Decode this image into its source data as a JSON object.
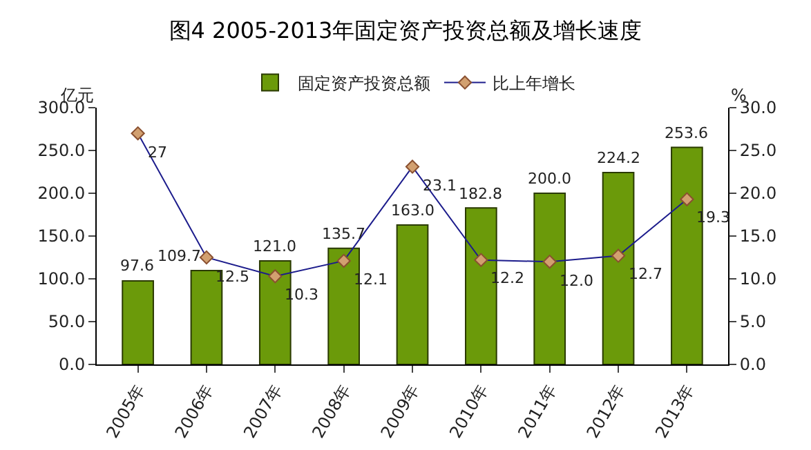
{
  "chart_data": {
    "type": "bar",
    "title": "图4 2005-2013年固定资产投资总额及增长速度",
    "ylabel": "亿元",
    "y2label": "%",
    "categories": [
      "2005年",
      "2006年",
      "2007年",
      "2008年",
      "2009年",
      "2010年",
      "2011年",
      "2012年",
      "2013年"
    ],
    "series": [
      {
        "name": "固定资产投资总额",
        "color": "#6b9a0a",
        "values": [
          97.6,
          109.7,
          121.0,
          135.7,
          163.0,
          182.8,
          200.0,
          224.2,
          253.6
        ],
        "value_labels": [
          "97.6",
          "109.7",
          "121.0",
          "135.7",
          "163.0",
          "182.8",
          "200.0",
          "224.2",
          "253.6"
        ]
      },
      {
        "name": "比上年增长",
        "type": "line",
        "axis": "y2",
        "color": "#1c1c8c",
        "marker": "diamond",
        "values": [
          27,
          12.5,
          10.3,
          12.1,
          23.1,
          12.2,
          12.0,
          12.7,
          19.3
        ],
        "value_labels": [
          "27",
          "12.5",
          "10.3",
          "12.1",
          "23.1",
          "12.2",
          "12.0",
          "12.7",
          "19.3"
        ]
      }
    ],
    "ylim": [
      0,
      300
    ],
    "yticks": [
      {
        "value": 0,
        "label": "0.0"
      },
      {
        "value": 50,
        "label": "50.0"
      },
      {
        "value": 100,
        "label": "100.0"
      },
      {
        "value": 150,
        "label": "150.0"
      },
      {
        "value": 200,
        "label": "200.0"
      },
      {
        "value": 250,
        "label": "250.0"
      },
      {
        "value": 300,
        "label": "300.0"
      }
    ],
    "y2lim": [
      0,
      30
    ],
    "y2ticks": [
      {
        "value": 0,
        "label": "0.0"
      },
      {
        "value": 5,
        "label": "5.0"
      },
      {
        "value": 10,
        "label": "10.0"
      },
      {
        "value": 15,
        "label": "15.0"
      },
      {
        "value": 20,
        "label": "20.0"
      },
      {
        "value": 25,
        "label": "25.0"
      },
      {
        "value": 30,
        "label": "30.0"
      }
    ],
    "grid": false,
    "legend": "top"
  }
}
